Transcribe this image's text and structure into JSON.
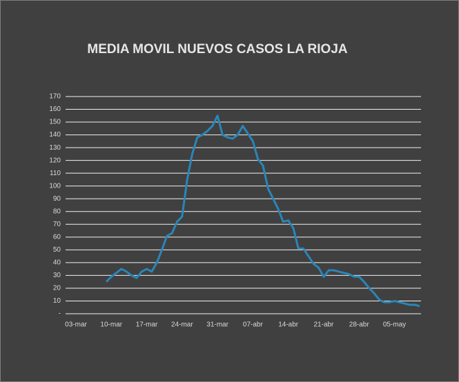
{
  "chart_data": {
    "type": "line",
    "title": "MEDIA MOVIL NUEVOS CASOS LA RIOJA",
    "categories": [
      "03-mar",
      null,
      null,
      null,
      null,
      null,
      null,
      "10-mar",
      null,
      null,
      null,
      null,
      null,
      null,
      "17-mar",
      null,
      null,
      null,
      null,
      null,
      null,
      "24-mar",
      null,
      null,
      null,
      null,
      null,
      null,
      "31-mar",
      null,
      null,
      null,
      null,
      null,
      null,
      "07-abr",
      null,
      null,
      null,
      null,
      null,
      null,
      "14-abr",
      null,
      null,
      null,
      null,
      null,
      null,
      "21-abr",
      null,
      null,
      null,
      null,
      null,
      null,
      "28-abr",
      null,
      null,
      null,
      null,
      null,
      null,
      "05-may",
      null,
      null,
      null,
      null,
      null
    ],
    "series": [
      {
        "name": null,
        "color": "#2a86b8",
        "values": [
          null,
          null,
          null,
          null,
          null,
          null,
          25,
          29,
          32,
          35,
          33,
          30,
          28,
          33,
          35,
          33,
          40,
          50,
          61,
          63,
          72,
          76,
          105,
          125,
          138,
          140,
          143,
          147,
          155,
          140,
          138,
          137,
          140,
          147,
          141,
          135,
          121,
          116,
          98,
          90,
          82,
          72,
          73,
          67,
          51,
          51,
          45,
          39,
          36,
          29,
          34,
          34,
          33,
          32,
          31,
          29,
          29,
          25,
          20,
          16,
          11,
          9,
          9,
          10,
          9,
          8,
          7,
          7,
          6
        ]
      }
    ],
    "ylim": [
      0,
      170
    ],
    "yticks": [
      {
        "value": 0,
        "label": "-"
      },
      10,
      20,
      30,
      40,
      50,
      60,
      70,
      80,
      90,
      100,
      110,
      120,
      130,
      140,
      150,
      160,
      170
    ],
    "grid": true,
    "background": "#404040"
  }
}
